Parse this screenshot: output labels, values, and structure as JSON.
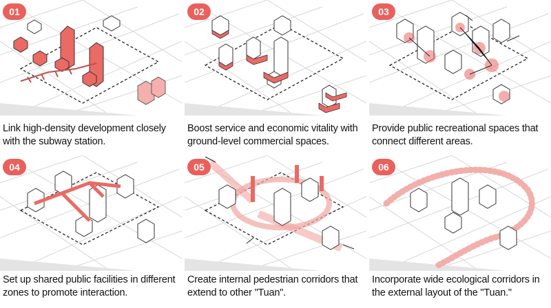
{
  "panels": [
    {
      "number": "01",
      "caption": "Link high-density development closely with the subway station."
    },
    {
      "number": "02",
      "caption": "Boost service and economic vitality with ground-level commercial spaces."
    },
    {
      "number": "03",
      "caption": "Provide public recreational spaces that connect different areas."
    },
    {
      "number": "04",
      "caption": "Set up shared public facilities in different zones to promote interaction."
    },
    {
      "number": "05",
      "caption": "Create internal pedestrian corridors that extend to other \"Tuan\"."
    },
    {
      "number": "06",
      "caption": "Incorporate wide ecological corridors in the external layout of the \"Tuan.\""
    }
  ],
  "colors": {
    "accent": "#e9605c",
    "accent_light": "#f4a9a5",
    "line": "#2b2b2b",
    "street": "#d9d9d9"
  },
  "icons": [
    "isometric-site-diagram"
  ]
}
